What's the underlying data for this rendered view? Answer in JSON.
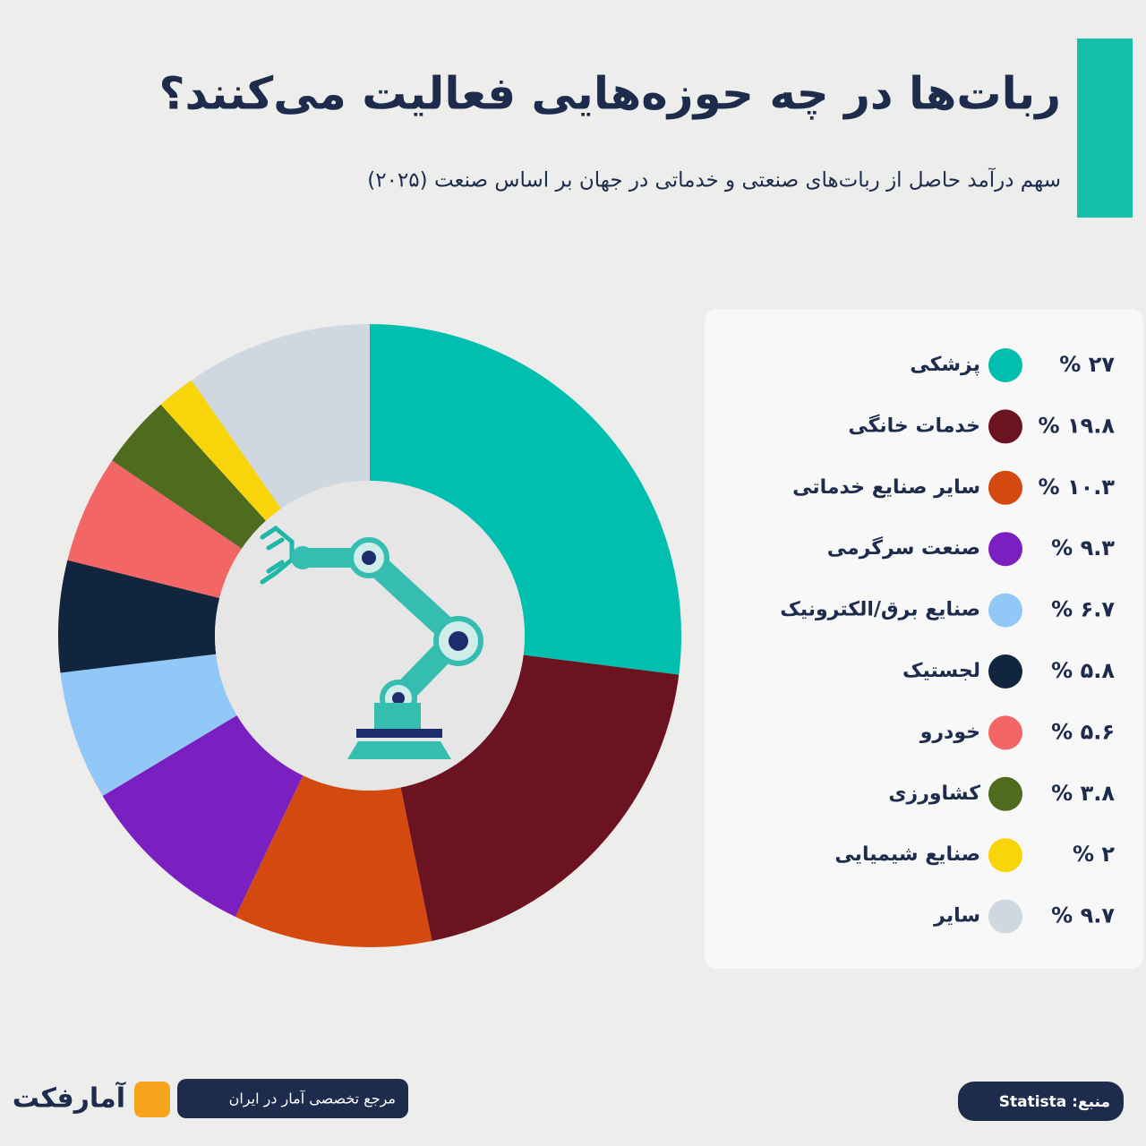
{
  "chart_data": {
    "type": "donut",
    "title": "ربات‌ها در چه حوزه‌هایی فعالیت می‌کنند؟",
    "subtitle": "سهم درآمد حاصل از ربات‌های صنعتی و خدماتی در جهان بر اساس صنعت (۲۰۲۵)",
    "categories": [
      "پزشکی",
      "خدمات خانگی",
      "سایر صنایع خدماتی",
      "صنعت سرگرمی",
      "صنایع برق/الکترونیک",
      "لجستیک",
      "خودرو",
      "کشاورزی",
      "صنایع شیمیایی",
      "سایر"
    ],
    "values": [
      27,
      19.8,
      10.3,
      9.3,
      6.7,
      5.8,
      5.6,
      3.8,
      2,
      9.7
    ],
    "value_labels": [
      "۲۷ %",
      "۱۹.۸ %",
      "۱۰.۳ %",
      "۹.۳ %",
      "۶.۷ %",
      "۵.۸ %",
      "۵.۶ %",
      "۳.۸ %",
      "۲ %",
      "۹.۷ %"
    ],
    "colors": [
      "#00bfae",
      "#6b1320",
      "#d3490f",
      "#7a1fc0",
      "#92c8f7",
      "#12253f",
      "#f26666",
      "#4e6b1e",
      "#f8d40a",
      "#cfd8e0"
    ]
  },
  "footer": {
    "tagline": "مرجع تخصصی آمار در ایران",
    "source": "منبع: Statista",
    "brand": "آمارفکت"
  }
}
